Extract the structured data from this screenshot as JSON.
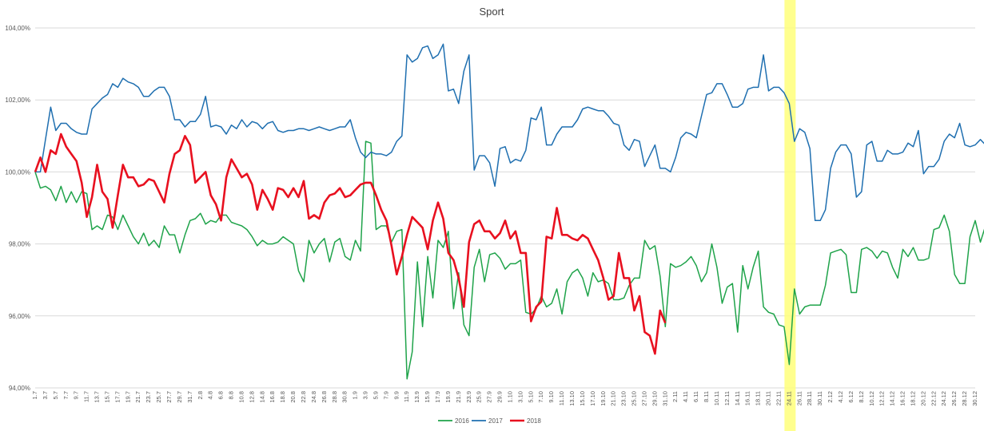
{
  "chart_data": {
    "type": "line",
    "title": "Sport",
    "xlabel": "",
    "ylabel": "",
    "ylim": [
      0.94,
      1.04
    ],
    "yticks": [
      "94,00%",
      "96,00%",
      "98,00%",
      "100,00%",
      "102,00%",
      "104,00%"
    ],
    "x_start_label": "1.7",
    "x_tick_labels": [
      "1.7",
      "3.7",
      "5.7",
      "7.7",
      "9.7",
      "11.7",
      "13.7",
      "15.7",
      "17.7",
      "19.7",
      "21.7",
      "23.7",
      "25.7",
      "27.7",
      "29.7",
      "31.7",
      "2.8",
      "4.8",
      "6.8",
      "8.8",
      "10.8",
      "12.8",
      "14.8",
      "16.8",
      "18.8",
      "20.8",
      "22.8",
      "24.8",
      "26.8",
      "28.8",
      "30.8",
      "1.9",
      "3.9",
      "5.9",
      "7.9",
      "9.9",
      "11.9",
      "13.9",
      "15.9",
      "17.9",
      "19.9",
      "21.9",
      "23.9",
      "25.9",
      "27.9",
      "29.9",
      "1.10",
      "3.10",
      "5.10",
      "7.10",
      "9.10",
      "11.10",
      "13.10",
      "15.10",
      "17.10",
      "19.10",
      "21.10",
      "23.10",
      "25.10",
      "27.10",
      "29.10",
      "31.10",
      "2.11",
      "4.11",
      "6.11",
      "8.11",
      "10.11",
      "12.11",
      "14.11",
      "16.11",
      "18.11",
      "20.11",
      "22.11",
      "24.11",
      "26.11",
      "28.11",
      "30.11",
      "2.12",
      "4.12",
      "6.12",
      "8.12",
      "10.12",
      "12.12",
      "14.12",
      "16.12",
      "18.12",
      "20.12",
      "22.12",
      "24.12",
      "26.12",
      "28.12",
      "30.12"
    ],
    "highlight_band_label": "24.11",
    "grid": true,
    "legend_position": "bottom",
    "series": [
      {
        "name": "2016",
        "color": "#1fa34a",
        "values": [
          1.0,
          0.9955,
          0.996,
          0.995,
          0.992,
          0.996,
          0.9915,
          0.9945,
          0.9915,
          0.9945,
          0.994,
          0.984,
          0.985,
          0.984,
          0.988,
          0.9875,
          0.984,
          0.988,
          0.985,
          0.982,
          0.98,
          0.983,
          0.9795,
          0.981,
          0.979,
          0.985,
          0.9825,
          0.9825,
          0.9775,
          0.9825,
          0.9865,
          0.987,
          0.9885,
          0.9855,
          0.9865,
          0.986,
          0.988,
          0.988,
          0.986,
          0.9855,
          0.985,
          0.984,
          0.982,
          0.9795,
          0.981,
          0.98,
          0.98,
          0.9805,
          0.982,
          0.981,
          0.98,
          0.9725,
          0.9695,
          0.981,
          0.9775,
          0.98,
          0.9815,
          0.975,
          0.9805,
          0.9815,
          0.9765,
          0.9755,
          0.981,
          0.978,
          1.0085,
          1.008,
          0.984,
          0.985,
          0.985,
          0.9805,
          0.9835,
          0.984,
          0.9425,
          0.95,
          0.975,
          0.957,
          0.9765,
          0.965,
          0.981,
          0.979,
          0.9835,
          0.962,
          0.972,
          0.9575,
          0.9545,
          0.9735,
          0.9785,
          0.9695,
          0.977,
          0.9775,
          0.976,
          0.973,
          0.9745,
          0.9745,
          0.9755,
          0.961,
          0.9605,
          0.962,
          0.9655,
          0.9625,
          0.9635,
          0.9675,
          0.9605,
          0.9695,
          0.972,
          0.973,
          0.9705,
          0.9655,
          0.972,
          0.9695,
          0.97,
          0.969,
          0.9645,
          0.9645,
          0.965,
          0.9685,
          0.9705,
          0.9705,
          0.981,
          0.9785,
          0.9795,
          0.971,
          0.957,
          0.9745,
          0.9735,
          0.974,
          0.975,
          0.9765,
          0.974,
          0.9695,
          0.972,
          0.98,
          0.9735,
          0.9635,
          0.968,
          0.969,
          0.9555,
          0.974,
          0.9675,
          0.9735,
          0.978,
          0.9625,
          0.961,
          0.9605,
          0.9575,
          0.957,
          0.9465,
          0.9675,
          0.9605,
          0.9625,
          0.963,
          0.963,
          0.963,
          0.9685,
          0.9775,
          0.978,
          0.9785,
          0.977,
          0.9665,
          0.9665,
          0.9785,
          0.979,
          0.978,
          0.976,
          0.978,
          0.9775,
          0.9735,
          0.9705,
          0.9785,
          0.9765,
          0.979,
          0.9755,
          0.9755,
          0.976,
          0.984,
          0.9845,
          0.988,
          0.9835,
          0.9715,
          0.969,
          0.969,
          0.982,
          0.9865,
          0.9805,
          0.985,
          0.9745,
          0.975
        ]
      },
      {
        "name": "2017",
        "color": "#1f6fb0",
        "values": [
          1.0,
          1.0,
          1.009,
          1.018,
          1.0115,
          1.0135,
          1.0135,
          1.012,
          1.011,
          1.0105,
          1.0105,
          1.0175,
          1.019,
          1.0205,
          1.0215,
          1.0245,
          1.0235,
          1.026,
          1.025,
          1.0245,
          1.0235,
          1.021,
          1.021,
          1.0225,
          1.0235,
          1.0235,
          1.021,
          1.0145,
          1.0145,
          1.0125,
          1.014,
          1.014,
          1.016,
          1.021,
          1.0125,
          1.013,
          1.0125,
          1.0105,
          1.013,
          1.012,
          1.0145,
          1.0125,
          1.014,
          1.0135,
          1.012,
          1.0135,
          1.014,
          1.0115,
          1.011,
          1.0115,
          1.0115,
          1.012,
          1.012,
          1.0115,
          1.012,
          1.0125,
          1.012,
          1.0115,
          1.012,
          1.0125,
          1.0125,
          1.0145,
          1.0095,
          1.0055,
          1.004,
          1.0055,
          1.005,
          1.005,
          1.0045,
          1.0055,
          1.0085,
          1.01,
          1.0325,
          1.0305,
          1.0315,
          1.0345,
          1.035,
          1.0315,
          1.0325,
          1.0355,
          1.0225,
          1.023,
          1.019,
          1.028,
          1.0325,
          1.0005,
          1.0045,
          1.0045,
          1.0025,
          0.996,
          1.0065,
          1.007,
          1.0025,
          1.0035,
          1.003,
          1.006,
          1.015,
          1.0145,
          1.018,
          1.0075,
          1.0075,
          1.0105,
          1.0125,
          1.0125,
          1.0125,
          1.0145,
          1.0175,
          1.018,
          1.0175,
          1.017,
          1.017,
          1.0155,
          1.0135,
          1.013,
          1.0075,
          1.006,
          1.009,
          1.0085,
          1.0015,
          1.0045,
          1.0075,
          1.001,
          1.001,
          1.0,
          1.004,
          1.0095,
          1.011,
          1.0105,
          1.0095,
          1.0155,
          1.0215,
          1.022,
          1.0245,
          1.0245,
          1.0215,
          1.018,
          1.018,
          1.019,
          1.023,
          1.0235,
          1.0235,
          1.0325,
          1.0225,
          1.0235,
          1.0235,
          1.022,
          1.019,
          1.0085,
          1.012,
          1.011,
          1.0065,
          0.9865,
          0.9865,
          0.9895,
          1.001,
          1.0055,
          1.0075,
          1.0075,
          1.005,
          0.993,
          0.9945,
          1.0075,
          1.0085,
          1.003,
          1.003,
          1.006,
          1.005,
          1.005,
          1.0055,
          1.008,
          1.007,
          1.0115,
          0.9995,
          1.0015,
          1.0015,
          1.0035,
          1.0085,
          1.0105,
          1.0095,
          1.0135,
          1.0075,
          1.007,
          1.0075,
          1.009,
          1.0075,
          1.003,
          1.0035,
          1.0015,
          1.0115
        ]
      },
      {
        "name": "2018",
        "color": "#e8101f",
        "values": [
          1.0,
          1.004,
          1.0,
          1.006,
          1.005,
          1.0105,
          1.007,
          1.005,
          1.003,
          0.997,
          0.9875,
          0.993,
          1.002,
          0.9945,
          0.9925,
          0.9845,
          0.9935,
          1.002,
          0.9985,
          0.9985,
          0.996,
          0.9965,
          0.998,
          0.9975,
          0.9945,
          0.9915,
          0.9995,
          1.005,
          1.006,
          1.01,
          1.0075,
          0.997,
          0.9985,
          1.0,
          0.9935,
          0.991,
          0.9865,
          0.9985,
          1.0035,
          1.001,
          0.9985,
          0.9995,
          0.9965,
          0.9895,
          0.995,
          0.9925,
          0.9895,
          0.9955,
          0.995,
          0.993,
          0.9955,
          0.993,
          0.9975,
          0.987,
          0.988,
          0.987,
          0.9915,
          0.9935,
          0.994,
          0.9955,
          0.993,
          0.9935,
          0.995,
          0.9965,
          0.997,
          0.997,
          0.9935,
          0.9895,
          0.9865,
          0.9795,
          0.9715,
          0.9765,
          0.9825,
          0.9875,
          0.986,
          0.9845,
          0.9785,
          0.9865,
          0.9915,
          0.987,
          0.9775,
          0.9755,
          0.9705,
          0.9625,
          0.9805,
          0.9855,
          0.9865,
          0.9835,
          0.9835,
          0.9815,
          0.983,
          0.9865,
          0.9815,
          0.9835,
          0.9775,
          0.9775,
          0.9585,
          0.9625,
          0.964,
          0.982,
          0.9815,
          0.99,
          0.9825,
          0.9825,
          0.9815,
          0.981,
          0.9825,
          0.9815,
          0.9785,
          0.9755,
          0.9705,
          0.9645,
          0.9655,
          0.9775,
          0.9705,
          0.9705,
          0.9615,
          0.9655,
          0.9555,
          0.9545,
          0.9495,
          0.9615,
          0.958
        ]
      }
    ]
  }
}
